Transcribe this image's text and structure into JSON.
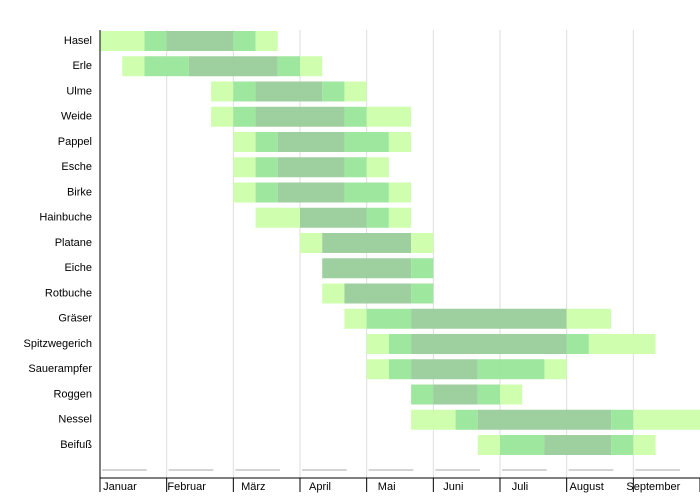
{
  "chart_data": {
    "type": "timeline",
    "months": [
      "Januar",
      "Februar",
      "März",
      "April",
      "Mai",
      "Juni",
      "Juli",
      "August",
      "September"
    ],
    "xlim": [
      0,
      27
    ],
    "xticks": [
      0,
      3,
      6,
      9,
      12,
      15,
      18,
      21,
      24,
      27
    ],
    "level_colors": {
      "1": "#ccffaa",
      "2": "#99e699",
      "3": "#99cc99"
    },
    "rows": [
      {
        "name": "Hasel",
        "segments": [
          {
            "start": 0,
            "end": 2,
            "level": 1
          },
          {
            "start": 2,
            "end": 3,
            "level": 2
          },
          {
            "start": 3,
            "end": 6,
            "level": 3
          },
          {
            "start": 6,
            "end": 7,
            "level": 2
          },
          {
            "start": 7,
            "end": 8,
            "level": 1
          }
        ]
      },
      {
        "name": "Erle",
        "segments": [
          {
            "start": 1,
            "end": 2,
            "level": 1
          },
          {
            "start": 2,
            "end": 4,
            "level": 2
          },
          {
            "start": 4,
            "end": 8,
            "level": 3
          },
          {
            "start": 8,
            "end": 9,
            "level": 2
          },
          {
            "start": 9,
            "end": 10,
            "level": 1
          }
        ]
      },
      {
        "name": "Ulme",
        "segments": [
          {
            "start": 5,
            "end": 6,
            "level": 1
          },
          {
            "start": 6,
            "end": 7,
            "level": 2
          },
          {
            "start": 7,
            "end": 10,
            "level": 3
          },
          {
            "start": 10,
            "end": 11,
            "level": 2
          },
          {
            "start": 11,
            "end": 12,
            "level": 1
          }
        ]
      },
      {
        "name": "Weide",
        "segments": [
          {
            "start": 5,
            "end": 6,
            "level": 1
          },
          {
            "start": 6,
            "end": 7,
            "level": 2
          },
          {
            "start": 7,
            "end": 11,
            "level": 3
          },
          {
            "start": 11,
            "end": 12,
            "level": 2
          },
          {
            "start": 12,
            "end": 14,
            "level": 1
          }
        ]
      },
      {
        "name": "Pappel",
        "segments": [
          {
            "start": 6,
            "end": 7,
            "level": 1
          },
          {
            "start": 7,
            "end": 8,
            "level": 2
          },
          {
            "start": 8,
            "end": 11,
            "level": 3
          },
          {
            "start": 11,
            "end": 13,
            "level": 2
          },
          {
            "start": 13,
            "end": 14,
            "level": 1
          }
        ]
      },
      {
        "name": "Esche",
        "segments": [
          {
            "start": 6,
            "end": 7,
            "level": 1
          },
          {
            "start": 7,
            "end": 8,
            "level": 2
          },
          {
            "start": 8,
            "end": 11,
            "level": 3
          },
          {
            "start": 11,
            "end": 12,
            "level": 2
          },
          {
            "start": 12,
            "end": 13,
            "level": 1
          }
        ]
      },
      {
        "name": "Birke",
        "segments": [
          {
            "start": 6,
            "end": 7,
            "level": 1
          },
          {
            "start": 7,
            "end": 8,
            "level": 2
          },
          {
            "start": 8,
            "end": 11,
            "level": 3
          },
          {
            "start": 11,
            "end": 13,
            "level": 2
          },
          {
            "start": 13,
            "end": 14,
            "level": 1
          }
        ]
      },
      {
        "name": "Hainbuche",
        "segments": [
          {
            "start": 7,
            "end": 9,
            "level": 1
          },
          {
            "start": 9,
            "end": 12,
            "level": 3
          },
          {
            "start": 12,
            "end": 13,
            "level": 2
          },
          {
            "start": 13,
            "end": 14,
            "level": 1
          }
        ]
      },
      {
        "name": "Platane",
        "segments": [
          {
            "start": 9,
            "end": 10,
            "level": 1
          },
          {
            "start": 10,
            "end": 14,
            "level": 3
          },
          {
            "start": 14,
            "end": 15,
            "level": 1
          }
        ]
      },
      {
        "name": "Eiche",
        "segments": [
          {
            "start": 10,
            "end": 14,
            "level": 3
          },
          {
            "start": 14,
            "end": 15,
            "level": 2
          }
        ]
      },
      {
        "name": "Rotbuche",
        "segments": [
          {
            "start": 10,
            "end": 11,
            "level": 1
          },
          {
            "start": 11,
            "end": 14,
            "level": 3
          },
          {
            "start": 14,
            "end": 15,
            "level": 2
          }
        ]
      },
      {
        "name": "Gräser",
        "segments": [
          {
            "start": 11,
            "end": 12,
            "level": 1
          },
          {
            "start": 12,
            "end": 14,
            "level": 2
          },
          {
            "start": 14,
            "end": 21,
            "level": 3
          },
          {
            "start": 21,
            "end": 23,
            "level": 1
          }
        ]
      },
      {
        "name": "Spitzwegerich",
        "segments": [
          {
            "start": 12,
            "end": 13,
            "level": 1
          },
          {
            "start": 13,
            "end": 14,
            "level": 2
          },
          {
            "start": 14,
            "end": 21,
            "level": 3
          },
          {
            "start": 21,
            "end": 22,
            "level": 2
          },
          {
            "start": 22,
            "end": 25,
            "level": 1
          }
        ]
      },
      {
        "name": "Sauerampfer",
        "segments": [
          {
            "start": 12,
            "end": 13,
            "level": 1
          },
          {
            "start": 13,
            "end": 14,
            "level": 2
          },
          {
            "start": 14,
            "end": 17,
            "level": 3
          },
          {
            "start": 17,
            "end": 20,
            "level": 2
          },
          {
            "start": 20,
            "end": 21,
            "level": 1
          }
        ]
      },
      {
        "name": "Roggen",
        "segments": [
          {
            "start": 14,
            "end": 15,
            "level": 2
          },
          {
            "start": 15,
            "end": 17,
            "level": 3
          },
          {
            "start": 17,
            "end": 18,
            "level": 2
          },
          {
            "start": 18,
            "end": 19,
            "level": 1
          }
        ]
      },
      {
        "name": "Nessel",
        "segments": [
          {
            "start": 14,
            "end": 16,
            "level": 1
          },
          {
            "start": 16,
            "end": 17,
            "level": 2
          },
          {
            "start": 17,
            "end": 23,
            "level": 3
          },
          {
            "start": 23,
            "end": 24,
            "level": 2
          },
          {
            "start": 24,
            "end": 27,
            "level": 1
          }
        ]
      },
      {
        "name": "Beifuß",
        "segments": [
          {
            "start": 17,
            "end": 18,
            "level": 1
          },
          {
            "start": 18,
            "end": 20,
            "level": 2
          },
          {
            "start": 20,
            "end": 23,
            "level": 3
          },
          {
            "start": 23,
            "end": 24,
            "level": 2
          },
          {
            "start": 24,
            "end": 25,
            "level": 1
          }
        ]
      }
    ]
  }
}
